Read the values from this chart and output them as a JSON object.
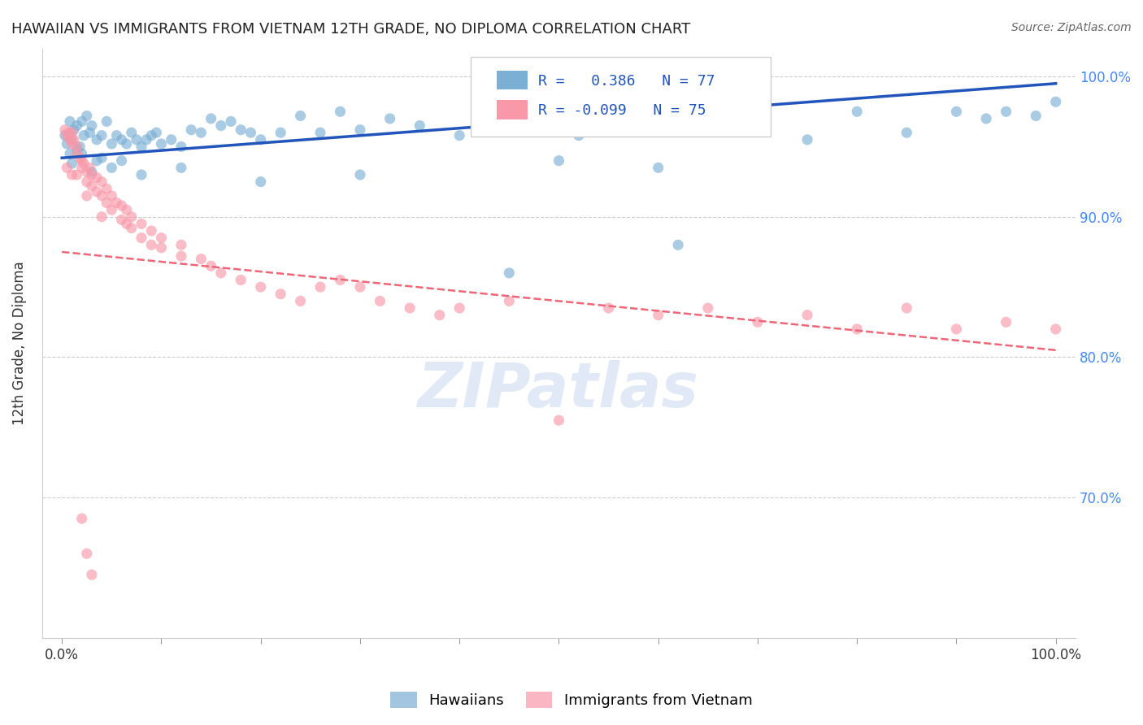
{
  "title": "HAWAIIAN VS IMMIGRANTS FROM VIETNAM 12TH GRADE, NO DIPLOMA CORRELATION CHART",
  "source": "Source: ZipAtlas.com",
  "ylabel": "12th Grade, No Diploma",
  "legend_label1": "Hawaiians",
  "legend_label2": "Immigrants from Vietnam",
  "watermark": "ZIPatlas",
  "R_blue": 0.386,
  "N_blue": 77,
  "R_pink": -0.099,
  "N_pink": 75,
  "blue_color": "#7BAFD4",
  "pink_color": "#F898A8",
  "blue_line_color": "#2255BB",
  "pink_line_color": "#EE6677",
  "blue_scatter": [
    [
      0.3,
      95.8
    ],
    [
      0.5,
      95.2
    ],
    [
      0.8,
      96.8
    ],
    [
      1.0,
      95.5
    ],
    [
      1.2,
      96.2
    ],
    [
      1.5,
      96.5
    ],
    [
      1.8,
      95.0
    ],
    [
      2.0,
      96.8
    ],
    [
      2.2,
      95.8
    ],
    [
      2.5,
      97.2
    ],
    [
      2.8,
      96.0
    ],
    [
      3.0,
      96.5
    ],
    [
      3.5,
      95.5
    ],
    [
      4.0,
      95.8
    ],
    [
      4.5,
      96.8
    ],
    [
      5.0,
      95.2
    ],
    [
      5.5,
      95.8
    ],
    [
      6.0,
      95.5
    ],
    [
      6.5,
      95.2
    ],
    [
      7.0,
      96.0
    ],
    [
      7.5,
      95.5
    ],
    [
      8.0,
      95.0
    ],
    [
      8.5,
      95.5
    ],
    [
      9.0,
      95.8
    ],
    [
      9.5,
      96.0
    ],
    [
      10.0,
      95.2
    ],
    [
      11.0,
      95.5
    ],
    [
      12.0,
      95.0
    ],
    [
      13.0,
      96.2
    ],
    [
      14.0,
      96.0
    ],
    [
      15.0,
      97.0
    ],
    [
      16.0,
      96.5
    ],
    [
      17.0,
      96.8
    ],
    [
      18.0,
      96.2
    ],
    [
      19.0,
      96.0
    ],
    [
      20.0,
      95.5
    ],
    [
      22.0,
      96.0
    ],
    [
      24.0,
      97.2
    ],
    [
      26.0,
      96.0
    ],
    [
      28.0,
      97.5
    ],
    [
      30.0,
      96.2
    ],
    [
      33.0,
      97.0
    ],
    [
      36.0,
      96.5
    ],
    [
      40.0,
      95.8
    ],
    [
      44.0,
      97.0
    ],
    [
      48.0,
      96.5
    ],
    [
      52.0,
      95.8
    ],
    [
      56.0,
      97.0
    ],
    [
      60.0,
      96.2
    ],
    [
      65.0,
      97.5
    ],
    [
      70.0,
      96.8
    ],
    [
      75.0,
      95.5
    ],
    [
      80.0,
      97.5
    ],
    [
      85.0,
      96.0
    ],
    [
      90.0,
      97.5
    ],
    [
      93.0,
      97.0
    ],
    [
      95.0,
      97.5
    ],
    [
      98.0,
      97.2
    ],
    [
      100.0,
      98.2
    ],
    [
      3.5,
      94.0
    ],
    [
      5.0,
      93.5
    ],
    [
      8.0,
      93.0
    ],
    [
      12.0,
      93.5
    ],
    [
      20.0,
      92.5
    ],
    [
      30.0,
      93.0
    ],
    [
      50.0,
      94.0
    ],
    [
      60.0,
      93.5
    ],
    [
      2.0,
      94.5
    ],
    [
      4.0,
      94.2
    ],
    [
      1.0,
      93.8
    ],
    [
      6.0,
      94.0
    ],
    [
      0.8,
      94.5
    ],
    [
      1.5,
      94.8
    ],
    [
      3.0,
      93.2
    ],
    [
      45.0,
      86.0
    ],
    [
      62.0,
      88.0
    ]
  ],
  "pink_scatter": [
    [
      0.3,
      96.2
    ],
    [
      0.5,
      95.8
    ],
    [
      0.7,
      96.0
    ],
    [
      0.8,
      95.5
    ],
    [
      1.0,
      96.0
    ],
    [
      1.0,
      95.2
    ],
    [
      1.2,
      95.5
    ],
    [
      1.5,
      95.0
    ],
    [
      1.5,
      94.5
    ],
    [
      1.8,
      94.2
    ],
    [
      2.0,
      94.0
    ],
    [
      2.0,
      93.5
    ],
    [
      2.2,
      93.8
    ],
    [
      2.5,
      93.2
    ],
    [
      2.5,
      92.5
    ],
    [
      2.8,
      93.5
    ],
    [
      3.0,
      93.0
    ],
    [
      3.0,
      92.2
    ],
    [
      3.5,
      92.8
    ],
    [
      3.5,
      91.8
    ],
    [
      4.0,
      92.5
    ],
    [
      4.0,
      91.5
    ],
    [
      4.5,
      92.0
    ],
    [
      4.5,
      91.0
    ],
    [
      5.0,
      91.5
    ],
    [
      5.0,
      90.5
    ],
    [
      5.5,
      91.0
    ],
    [
      6.0,
      90.8
    ],
    [
      6.0,
      89.8
    ],
    [
      6.5,
      90.5
    ],
    [
      7.0,
      90.0
    ],
    [
      7.0,
      89.2
    ],
    [
      8.0,
      89.5
    ],
    [
      8.0,
      88.5
    ],
    [
      9.0,
      89.0
    ],
    [
      10.0,
      88.5
    ],
    [
      10.0,
      87.8
    ],
    [
      12.0,
      88.0
    ],
    [
      12.0,
      87.2
    ],
    [
      14.0,
      87.0
    ],
    [
      15.0,
      86.5
    ],
    [
      16.0,
      86.0
    ],
    [
      18.0,
      85.5
    ],
    [
      20.0,
      85.0
    ],
    [
      22.0,
      84.5
    ],
    [
      24.0,
      84.0
    ],
    [
      26.0,
      85.0
    ],
    [
      28.0,
      85.5
    ],
    [
      30.0,
      85.0
    ],
    [
      32.0,
      84.0
    ],
    [
      35.0,
      83.5
    ],
    [
      38.0,
      83.0
    ],
    [
      40.0,
      83.5
    ],
    [
      45.0,
      84.0
    ],
    [
      50.0,
      75.5
    ],
    [
      55.0,
      83.5
    ],
    [
      60.0,
      83.0
    ],
    [
      65.0,
      83.5
    ],
    [
      70.0,
      82.5
    ],
    [
      75.0,
      83.0
    ],
    [
      80.0,
      82.0
    ],
    [
      85.0,
      83.5
    ],
    [
      90.0,
      82.0
    ],
    [
      95.0,
      82.5
    ],
    [
      100.0,
      82.0
    ],
    [
      1.5,
      93.0
    ],
    [
      2.5,
      91.5
    ],
    [
      4.0,
      90.0
    ],
    [
      6.5,
      89.5
    ],
    [
      9.0,
      88.0
    ],
    [
      2.0,
      68.5
    ],
    [
      2.5,
      66.0
    ],
    [
      3.0,
      64.5
    ],
    [
      0.5,
      93.5
    ],
    [
      1.0,
      93.0
    ]
  ],
  "blue_line_x": [
    0,
    100
  ],
  "blue_line_y": [
    94.2,
    99.5
  ],
  "pink_line_x": [
    0,
    100
  ],
  "pink_line_y": [
    87.5,
    80.5
  ],
  "xlim": [
    -2,
    102
  ],
  "ylim": [
    60,
    102
  ],
  "yticks": [
    100,
    90,
    80,
    70
  ],
  "background_color": "#FFFFFF",
  "grid_color": "#CCCCCC",
  "title_color": "#222222",
  "axis_label_color": "#333333",
  "right_axis_color": "#4488FF",
  "watermark_color": "#C8D8EE",
  "legend_text_color": "#2255BB"
}
